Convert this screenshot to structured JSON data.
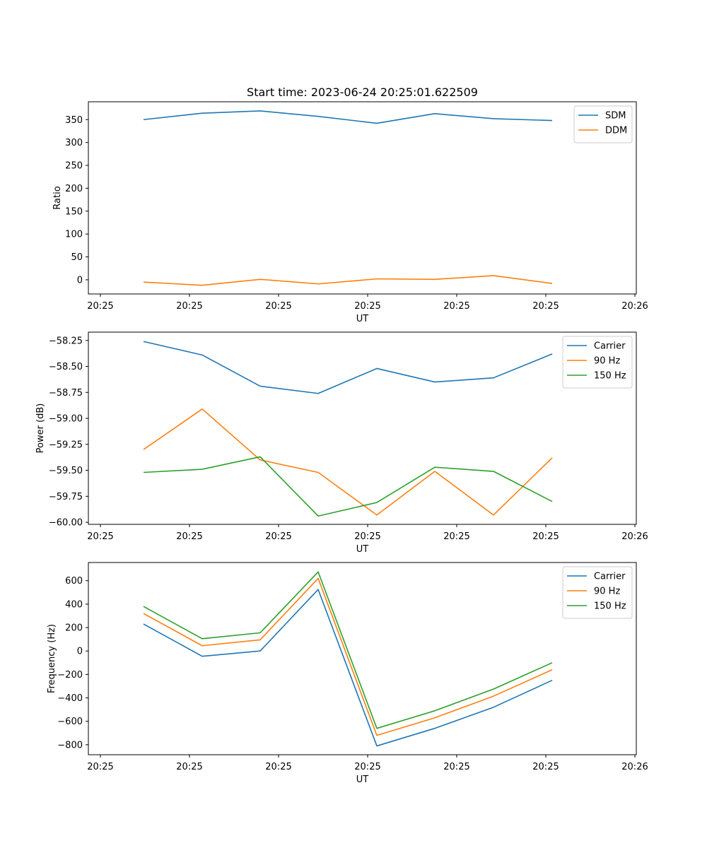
{
  "chart_data": [
    {
      "type": "line",
      "title": "Start time: 2023-06-24 20:25:01.622509",
      "xlabel": "UT",
      "ylabel": "Ratio",
      "x_tick_labels": [
        "20:25",
        "20:25",
        "20:25",
        "20:25",
        "20:25",
        "20:25",
        "20:25"
      ],
      "x_right_tick_label": "20:26",
      "ylim": [
        -31,
        389
      ],
      "y_ticks": [
        0,
        50,
        100,
        150,
        200,
        250,
        300,
        350
      ],
      "y_tick_labels": [
        "0",
        "50",
        "100",
        "150",
        "200",
        "250",
        "300",
        "350"
      ],
      "grid": false,
      "legend_position": "top-right",
      "series": [
        {
          "name": "SDM",
          "color": "#1f77b4",
          "values": [
            350,
            364,
            369,
            357,
            342,
            363,
            352,
            348
          ]
        },
        {
          "name": "DDM",
          "color": "#ff7f0e",
          "values": [
            -5,
            -12,
            1,
            -9,
            2,
            1,
            9,
            -8
          ]
        }
      ]
    },
    {
      "type": "line",
      "title": "",
      "xlabel": "UT",
      "ylabel": "Power (dB)",
      "x_tick_labels": [
        "20:25",
        "20:25",
        "20:25",
        "20:25",
        "20:25",
        "20:25",
        "20:25"
      ],
      "x_right_tick_label": "20:26",
      "ylim": [
        -60.02,
        -58.17
      ],
      "y_ticks": [
        -60.0,
        -59.75,
        -59.5,
        -59.25,
        -59.0,
        -58.75,
        -58.5,
        -58.25
      ],
      "y_tick_labels": [
        "−60.00",
        "−59.75",
        "−59.50",
        "−59.25",
        "−59.00",
        "−58.75",
        "−58.50",
        "−58.25"
      ],
      "grid": false,
      "legend_position": "top-right",
      "series": [
        {
          "name": "Carrier",
          "color": "#1f77b4",
          "values": [
            -58.26,
            -58.39,
            -58.69,
            -58.76,
            -58.52,
            -58.65,
            -58.61,
            -58.38
          ]
        },
        {
          "name": "90 Hz",
          "color": "#ff7f0e",
          "values": [
            -59.3,
            -58.91,
            -59.4,
            -59.52,
            -59.93,
            -59.51,
            -59.93,
            -59.38
          ]
        },
        {
          "name": "150 Hz",
          "color": "#2ca02c",
          "values": [
            -59.52,
            -59.49,
            -59.37,
            -59.94,
            -59.81,
            -59.47,
            -59.51,
            -59.8
          ]
        }
      ]
    },
    {
      "type": "line",
      "title": "",
      "xlabel": "UT",
      "ylabel": "Frequency (Hz)",
      "x_tick_labels": [
        "20:25",
        "20:25",
        "20:25",
        "20:25",
        "20:25",
        "20:25",
        "20:25"
      ],
      "x_right_tick_label": "20:26",
      "ylim": [
        -885,
        755
      ],
      "y_ticks": [
        -800,
        -600,
        -400,
        -200,
        0,
        200,
        400,
        600
      ],
      "y_tick_labels": [
        "−800",
        "−600",
        "−400",
        "−200",
        "0",
        "200",
        "400",
        "600"
      ],
      "grid": false,
      "legend_position": "top-right",
      "series": [
        {
          "name": "Carrier",
          "color": "#1f77b4",
          "values": [
            230,
            -45,
            0,
            525,
            -810,
            -660,
            -480,
            -250
          ]
        },
        {
          "name": "90 Hz",
          "color": "#ff7f0e",
          "values": [
            320,
            45,
            95,
            620,
            -720,
            -570,
            -385,
            -160
          ]
        },
        {
          "name": "150 Hz",
          "color": "#2ca02c",
          "values": [
            380,
            105,
            155,
            675,
            -660,
            -510,
            -325,
            -100
          ]
        }
      ]
    }
  ]
}
